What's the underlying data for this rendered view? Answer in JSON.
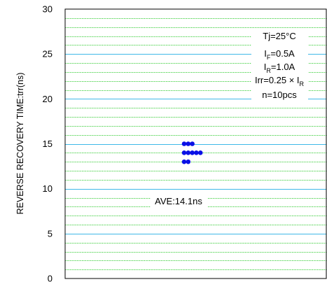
{
  "chart_data": {
    "type": "scatter",
    "title": "",
    "xlabel": "",
    "ylabel": "REVERSE RECOVERY TIME:trr(ns)",
    "ylim": [
      0,
      30
    ],
    "y_ticks": [
      0,
      5,
      10,
      15,
      20,
      25,
      30
    ],
    "y_tick_labels": [
      "0",
      "5",
      "10",
      "15",
      "20",
      "25",
      "30"
    ],
    "minor_step": 1,
    "grid": true,
    "legend": "none",
    "points": [
      {
        "x": 1,
        "y": 13
      },
      {
        "x": 2,
        "y": 13
      },
      {
        "x": 1,
        "y": 14
      },
      {
        "x": 2,
        "y": 14
      },
      {
        "x": 3,
        "y": 14
      },
      {
        "x": 4,
        "y": 14
      },
      {
        "x": 5,
        "y": 14
      },
      {
        "x": 1,
        "y": 15
      },
      {
        "x": 2,
        "y": 15
      },
      {
        "x": 3,
        "y": 15
      }
    ],
    "conditions": {
      "tj": "Tj=25°C",
      "if_main": "I",
      "if_sub": "F",
      "if_val": "=0.5A",
      "ir_main": "I",
      "ir_sub": "R",
      "ir_val": "=1.0A",
      "irr_main": "Irr=0.25 × I",
      "irr_sub": "R",
      "n": "n=10pcs"
    },
    "average_label": "AVE:14.1ns",
    "colors": {
      "major_grid": "#3fb8e8",
      "minor_grid": "#33cc33",
      "points": "#0a10e6",
      "axis": "#000000"
    }
  }
}
